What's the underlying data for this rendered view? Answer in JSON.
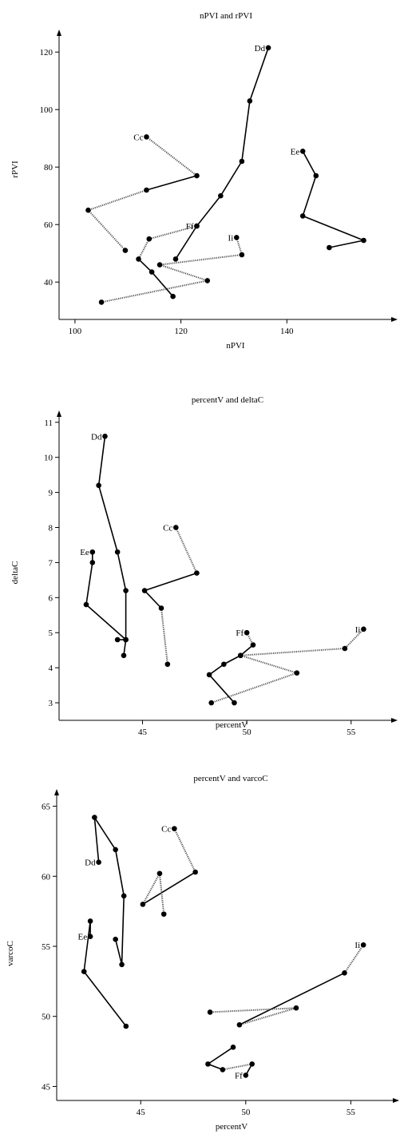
{
  "chart_data": [
    {
      "type": "line",
      "title": "nPVI and rPVI",
      "xlabel": "nPVI",
      "ylabel": "rPVI",
      "xlim": [
        97,
        160
      ],
      "ylim": [
        27,
        127
      ],
      "xticks": [
        100,
        120,
        140
      ],
      "yticks": [
        40,
        60,
        80,
        100,
        120
      ],
      "series": [
        {
          "name": "Cc",
          "points": [
            [
              113.5,
              90.5
            ],
            [
              123,
              77
            ],
            [
              113.5,
              72
            ],
            [
              102.5,
              65
            ],
            [
              109.5,
              51
            ]
          ],
          "segments": [
            "dotted",
            "solid",
            "dotted",
            "dotted"
          ]
        },
        {
          "name": "Dd",
          "points": [
            [
              136.5,
              121.5
            ],
            [
              133,
              103
            ],
            [
              131.5,
              82
            ],
            [
              127.5,
              70
            ],
            [
              123,
              59.5
            ],
            [
              119,
              48
            ]
          ],
          "segments": [
            "solid",
            "solid",
            "solid",
            "solid",
            "solid"
          ]
        },
        {
          "name": "Ee",
          "points": [
            [
              143,
              85.5
            ],
            [
              145.5,
              77
            ],
            [
              143,
              63
            ],
            [
              154.5,
              54.5
            ],
            [
              148,
              52
            ]
          ],
          "segments": [
            "solid",
            "solid",
            "solid",
            "solid"
          ]
        },
        {
          "name": "Ff",
          "points": [
            [
              123,
              59.5
            ],
            [
              114,
              55
            ],
            [
              112,
              48
            ],
            [
              114.5,
              43.5
            ],
            [
              118.5,
              35
            ]
          ],
          "segments": [
            "dotted",
            "dotted",
            "solid",
            "solid"
          ]
        },
        {
          "name": "Ii",
          "points": [
            [
              130.5,
              55.5
            ],
            [
              131.5,
              49.5
            ],
            [
              116,
              46
            ],
            [
              125,
              40.5
            ],
            [
              105,
              33
            ]
          ],
          "segments": [
            "dotted",
            "dotted",
            "dotted",
            "dotted"
          ]
        }
      ]
    },
    {
      "type": "line",
      "title": "percentV and deltaC",
      "xlabel": "percentV",
      "ylabel": "deltaC",
      "xlim": [
        41,
        57
      ],
      "ylim": [
        2.5,
        11.2
      ],
      "xticks": [
        45,
        50,
        55
      ],
      "yticks": [
        3,
        4,
        5,
        6,
        7,
        8,
        9,
        10,
        11
      ],
      "series": [
        {
          "name": "Dd",
          "points": [
            [
              43.2,
              10.6
            ],
            [
              42.9,
              9.2
            ],
            [
              43.8,
              7.3
            ],
            [
              44.2,
              6.2
            ],
            [
              44.2,
              4.8
            ],
            [
              43.8,
              4.8
            ]
          ],
          "segments": [
            "solid",
            "solid",
            "solid",
            "solid",
            "solid"
          ]
        },
        {
          "name": "Ee",
          "points": [
            [
              42.6,
              7.3
            ],
            [
              42.6,
              7.0
            ],
            [
              42.3,
              5.8
            ],
            [
              44.2,
              4.8
            ],
            [
              44.1,
              4.35
            ]
          ],
          "segments": [
            "solid",
            "solid",
            "solid",
            "solid"
          ]
        },
        {
          "name": "Cc",
          "points": [
            [
              46.6,
              8.0
            ],
            [
              47.6,
              6.7
            ],
            [
              45.1,
              6.2
            ],
            [
              45.9,
              5.7
            ],
            [
              46.2,
              4.1
            ]
          ],
          "segments": [
            "dotted",
            "solid",
            "solid",
            "dotted"
          ]
        },
        {
          "name": "Ff",
          "points": [
            [
              50.0,
              5.0
            ],
            [
              50.3,
              4.65
            ],
            [
              49.7,
              4.35
            ],
            [
              48.9,
              4.1
            ],
            [
              48.2,
              3.8
            ],
            [
              49.4,
              3.0
            ]
          ],
          "segments": [
            "dotted",
            "solid",
            "solid",
            "solid",
            "solid"
          ]
        },
        {
          "name": "Ii",
          "points": [
            [
              55.6,
              5.1
            ],
            [
              54.7,
              4.55
            ],
            [
              49.7,
              4.35
            ],
            [
              52.4,
              3.85
            ],
            [
              48.3,
              3.0
            ]
          ],
          "segments": [
            "dotted",
            "dotted",
            "dotted",
            "dotted"
          ]
        }
      ]
    },
    {
      "type": "line",
      "title": "percentV and varcoC",
      "xlabel": "percentV",
      "ylabel": "varcoC",
      "xlim": [
        41,
        57
      ],
      "ylim": [
        44,
        66
      ],
      "xticks": [
        45,
        50,
        55
      ],
      "yticks": [
        45,
        50,
        55,
        60,
        65
      ],
      "series": [
        {
          "name": "Dd",
          "points": [
            [
              43.0,
              61.0
            ],
            [
              42.8,
              64.2
            ],
            [
              43.8,
              61.9
            ],
            [
              44.2,
              58.6
            ],
            [
              44.1,
              53.7
            ],
            [
              43.8,
              55.5
            ]
          ],
          "segments": [
            "solid",
            "solid",
            "solid",
            "solid",
            "solid"
          ]
        },
        {
          "name": "Ee",
          "points": [
            [
              42.6,
              55.7
            ],
            [
              42.6,
              56.8
            ],
            [
              42.3,
              53.2
            ],
            [
              44.3,
              49.3
            ]
          ],
          "segments": [
            "solid",
            "solid",
            "solid"
          ]
        },
        {
          "name": "Cc",
          "points": [
            [
              46.6,
              63.4
            ],
            [
              47.6,
              60.3
            ],
            [
              45.1,
              58.0
            ],
            [
              45.9,
              60.2
            ],
            [
              46.1,
              57.3
            ]
          ],
          "segments": [
            "dotted",
            "solid",
            "dotted",
            "dotted"
          ]
        },
        {
          "name": "Ii",
          "points": [
            [
              55.6,
              55.1
            ],
            [
              54.7,
              53.1
            ],
            [
              49.7,
              49.4
            ],
            [
              52.4,
              50.6
            ],
            [
              48.3,
              50.3
            ]
          ],
          "segments": [
            "dotted",
            "solid",
            "dotted",
            "dotted"
          ]
        },
        {
          "name": "Ff",
          "points": [
            [
              50.0,
              45.8
            ],
            [
              50.3,
              46.6
            ],
            [
              48.9,
              46.2
            ],
            [
              48.2,
              46.6
            ],
            [
              49.4,
              47.8
            ]
          ],
          "segments": [
            "solid",
            "dotted",
            "solid",
            "solid"
          ]
        }
      ]
    }
  ]
}
